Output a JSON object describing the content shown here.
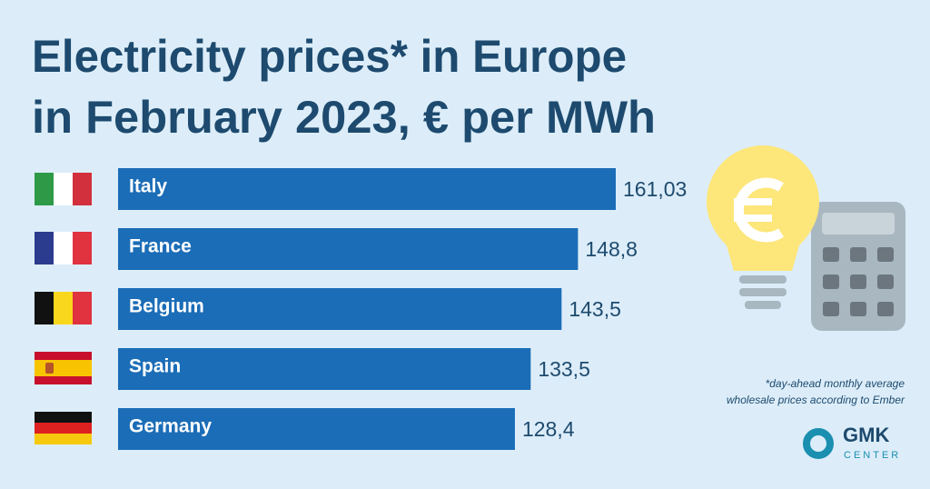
{
  "chart_data": {
    "type": "bar",
    "orientation": "horizontal",
    "title": [
      "Electricity prices* in Europe",
      "in February 2023, € per MWh"
    ],
    "categories": [
      "Italy",
      "France",
      "Belgium",
      "Spain",
      "Germany"
    ],
    "values": [
      161.03,
      148.8,
      143.5,
      133.5,
      128.4
    ],
    "value_labels": [
      "161,03",
      "148,8",
      "143,5",
      "133,5",
      "128,4"
    ],
    "color": "#1b6db7",
    "footnote": [
      "*day-ahead monthly average",
      "wholesale prices according to Ember"
    ]
  },
  "logo": {
    "name": "GMK",
    "tagline": "CENTER"
  }
}
